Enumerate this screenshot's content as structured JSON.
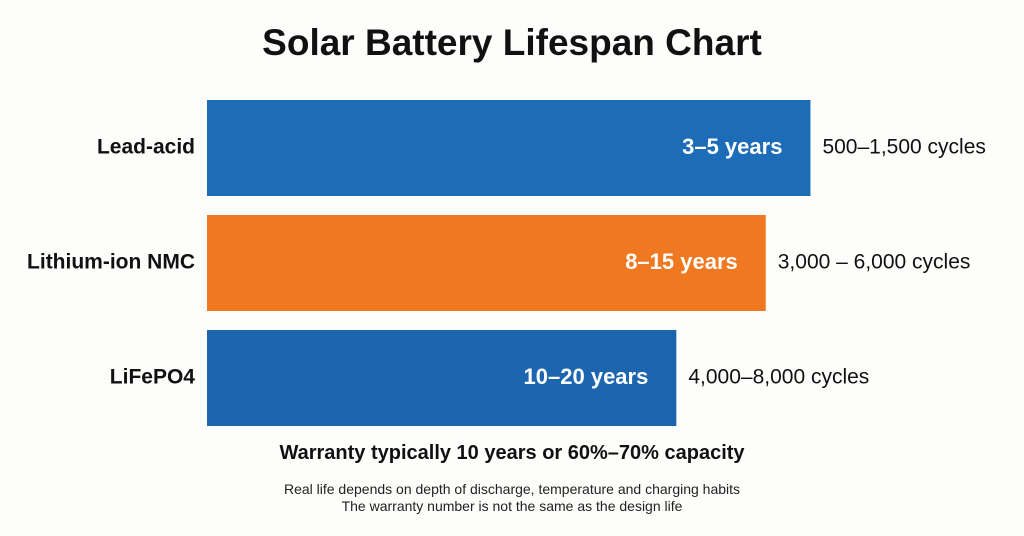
{
  "chart_data": {
    "type": "bar",
    "orientation": "horizontal",
    "title": "Solar Battery Lifespan Chart",
    "categories": [
      "Lead-acid",
      "Lithium-ion NMC",
      "LiFePO4"
    ],
    "series": [
      {
        "values": [
          3,
          8,
          10
        ],
        "value_ranges": [
          [
            3,
            5
          ],
          [
            8,
            15
          ],
          [
            10,
            20
          ]
        ]
      }
    ],
    "bar_labels": [
      "3–5 years",
      "8–15 years",
      "10–20 years"
    ],
    "cycle_labels": [
      "500–1,500 cycles",
      "3,000 – 6,000 cycles",
      "4,000–8,000 cycles"
    ],
    "bar_colors": [
      "#1c6cb8",
      "#f07820",
      "#1c66b0"
    ],
    "bar_length_fraction": [
      0.81,
      0.75,
      0.63
    ],
    "grid": false,
    "legend": "none"
  },
  "notes": {
    "main": "Warranty typically 10 years or 60%–70% capacity",
    "line1": "Real life depends on depth of discharge, temperature and charging habits",
    "line2": "The warranty number is not the same as the design life"
  }
}
